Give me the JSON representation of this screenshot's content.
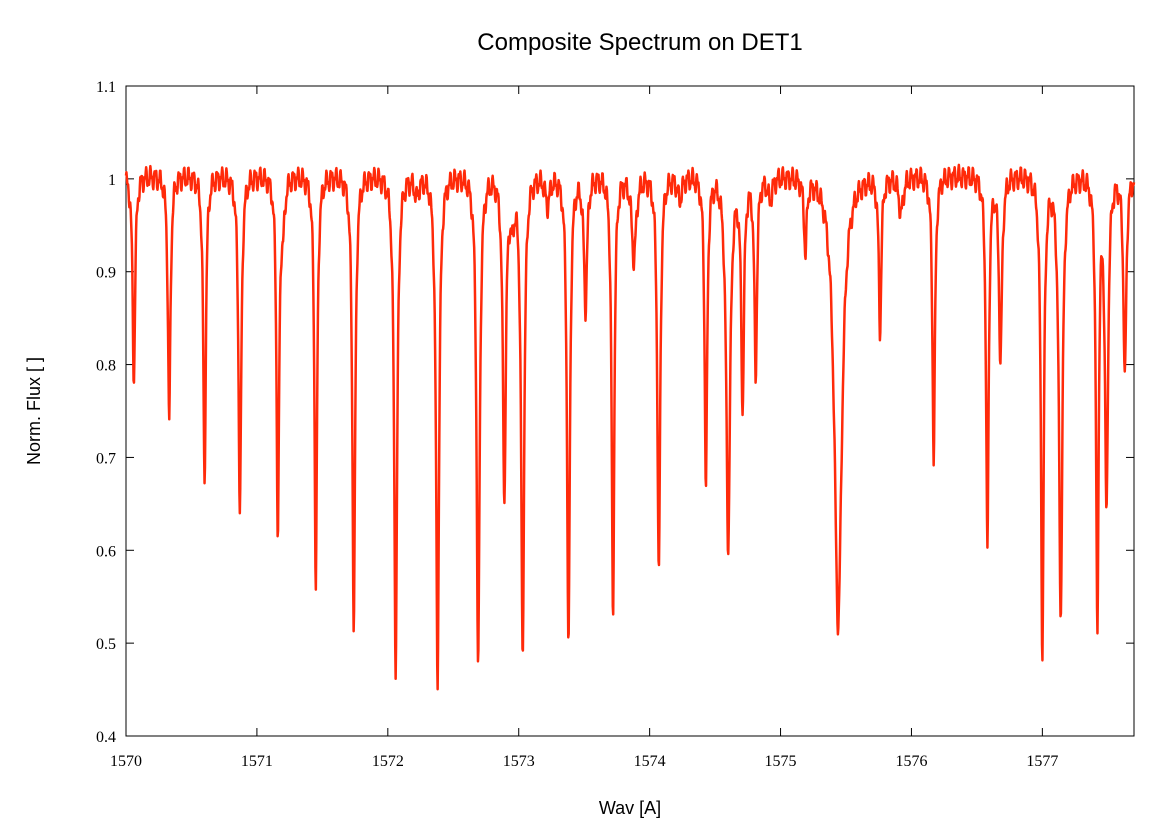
{
  "chart_data": {
    "type": "line",
    "title": "Composite Spectrum on DET1",
    "xlabel": "Wav [A]",
    "ylabel": "Norm. Flux [ ]",
    "xlim": [
      1570,
      1577.7
    ],
    "ylim": [
      0.4,
      1.1
    ],
    "grid": false,
    "x_ticks": [
      1570,
      1571,
      1572,
      1573,
      1574,
      1575,
      1576,
      1577
    ],
    "y_ticks": [
      0.4,
      0.5,
      0.6,
      0.7,
      0.8,
      0.9,
      1,
      1.1
    ],
    "series_color": "#ff2a0a",
    "continuum": 1.003,
    "absorption_lines": [
      {
        "x": 1570.06,
        "depth": 0.22,
        "width": 0.012
      },
      {
        "x": 1570.33,
        "depth": 0.265,
        "width": 0.012
      },
      {
        "x": 1570.6,
        "depth": 0.33,
        "width": 0.012
      },
      {
        "x": 1570.87,
        "depth": 0.365,
        "width": 0.013
      },
      {
        "x": 1571.16,
        "depth": 0.39,
        "width": 0.012
      },
      {
        "x": 1571.2,
        "depth": 0.045,
        "width": 0.015
      },
      {
        "x": 1571.45,
        "depth": 0.445,
        "width": 0.012
      },
      {
        "x": 1571.74,
        "depth": 0.49,
        "width": 0.013
      },
      {
        "x": 1572.06,
        "depth": 0.53,
        "width": 0.014
      },
      {
        "x": 1572.22,
        "depth": 0.02,
        "width": 0.02
      },
      {
        "x": 1572.38,
        "depth": 0.545,
        "width": 0.014
      },
      {
        "x": 1572.69,
        "depth": 0.535,
        "width": 0.014
      },
      {
        "x": 1572.89,
        "depth": 0.345,
        "width": 0.014
      },
      {
        "x": 1572.95,
        "depth": 0.04,
        "width": 0.02
      },
      {
        "x": 1573.03,
        "depth": 0.52,
        "width": 0.014
      },
      {
        "x": 1573.22,
        "depth": 0.03,
        "width": 0.02
      },
      {
        "x": 1573.38,
        "depth": 0.515,
        "width": 0.013
      },
      {
        "x": 1573.51,
        "depth": 0.14,
        "width": 0.015
      },
      {
        "x": 1573.72,
        "depth": 0.48,
        "width": 0.012
      },
      {
        "x": 1573.88,
        "depth": 0.09,
        "width": 0.02
      },
      {
        "x": 1574.07,
        "depth": 0.435,
        "width": 0.013
      },
      {
        "x": 1574.23,
        "depth": 0.025,
        "width": 0.02
      },
      {
        "x": 1574.43,
        "depth": 0.335,
        "width": 0.012
      },
      {
        "x": 1574.6,
        "depth": 0.4,
        "width": 0.018
      },
      {
        "x": 1574.71,
        "depth": 0.245,
        "width": 0.013
      },
      {
        "x": 1574.81,
        "depth": 0.215,
        "width": 0.012
      },
      {
        "x": 1574.92,
        "depth": 0.025,
        "width": 0.02
      },
      {
        "x": 1575.19,
        "depth": 0.08,
        "width": 0.012
      },
      {
        "x": 1575.44,
        "depth": 0.485,
        "width": 0.035
      },
      {
        "x": 1575.76,
        "depth": 0.165,
        "width": 0.012
      },
      {
        "x": 1575.92,
        "depth": 0.04,
        "width": 0.02
      },
      {
        "x": 1576.17,
        "depth": 0.305,
        "width": 0.012
      },
      {
        "x": 1576.58,
        "depth": 0.405,
        "width": 0.012
      },
      {
        "x": 1576.68,
        "depth": 0.2,
        "width": 0.014
      },
      {
        "x": 1577.0,
        "depth": 0.515,
        "width": 0.013
      },
      {
        "x": 1577.14,
        "depth": 0.475,
        "width": 0.016
      },
      {
        "x": 1577.42,
        "depth": 0.49,
        "width": 0.012
      },
      {
        "x": 1577.49,
        "depth": 0.36,
        "width": 0.014
      },
      {
        "x": 1577.63,
        "depth": 0.22,
        "width": 0.013
      }
    ]
  }
}
